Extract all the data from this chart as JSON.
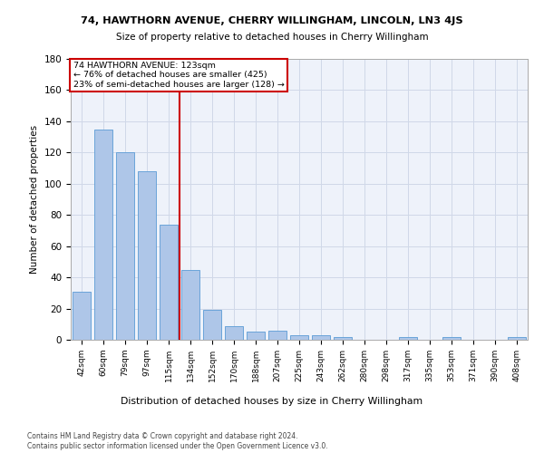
{
  "title1": "74, HAWTHORN AVENUE, CHERRY WILLINGHAM, LINCOLN, LN3 4JS",
  "title2": "Size of property relative to detached houses in Cherry Willingham",
  "xlabel": "Distribution of detached houses by size in Cherry Willingham",
  "ylabel": "Number of detached properties",
  "footnote": "Contains HM Land Registry data © Crown copyright and database right 2024.\nContains public sector information licensed under the Open Government Licence v3.0.",
  "bar_labels": [
    "42sqm",
    "60sqm",
    "79sqm",
    "97sqm",
    "115sqm",
    "134sqm",
    "152sqm",
    "170sqm",
    "188sqm",
    "207sqm",
    "225sqm",
    "243sqm",
    "262sqm",
    "280sqm",
    "298sqm",
    "317sqm",
    "335sqm",
    "353sqm",
    "371sqm",
    "390sqm",
    "408sqm"
  ],
  "bar_values": [
    31,
    135,
    120,
    108,
    74,
    45,
    19,
    9,
    5,
    6,
    3,
    3,
    2,
    0,
    0,
    2,
    0,
    2,
    0,
    0,
    2
  ],
  "bar_color": "#aec6e8",
  "bar_edge_color": "#5b9bd5",
  "grid_color": "#d0d8e8",
  "bg_color": "#eef2fa",
  "annotation_box_color": "#cc0000",
  "vline_x": 4.5,
  "vline_color": "#cc0000",
  "annotation_text": "74 HAWTHORN AVENUE: 123sqm\n← 76% of detached houses are smaller (425)\n23% of semi-detached houses are larger (128) →",
  "ylim": [
    0,
    180
  ],
  "yticks": [
    0,
    20,
    40,
    60,
    80,
    100,
    120,
    140,
    160,
    180
  ]
}
